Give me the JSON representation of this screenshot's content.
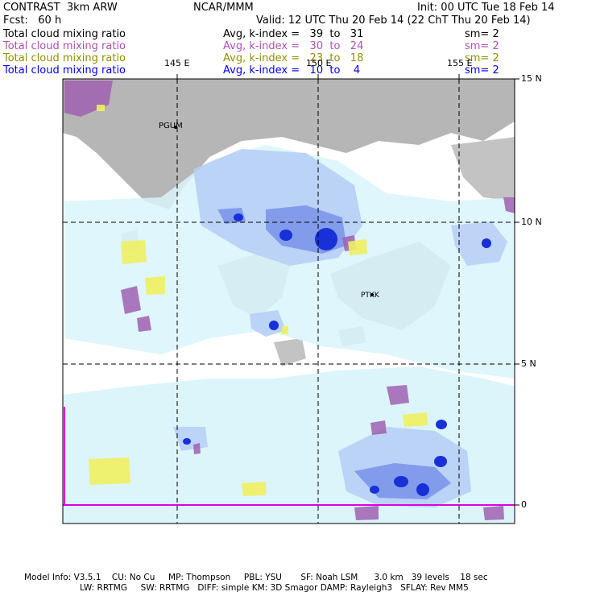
{
  "header": {
    "model": "CONTRAST  3km ARW",
    "center": "NCAR/MMM",
    "init": "Init: 00 UTC Tue 18 Feb 14",
    "fcst": "Fcst:   60 h",
    "valid": "Valid: 12 UTC Thu 20 Feb 14 (22 ChT Thu 20 Feb 14)"
  },
  "fields": [
    {
      "name": "Total cloud mixing ratio",
      "stat": "Avg, k-index =   39  to   31",
      "sm": "sm= 2",
      "color": "#000000"
    },
    {
      "name": "Total cloud mixing ratio",
      "stat": "Avg, k-index =   30  to   24",
      "sm": "sm= 2",
      "color": "#b050b0"
    },
    {
      "name": "Total cloud mixing ratio",
      "stat": "Avg, k-index =   23  to   18",
      "sm": "sm= 2",
      "color": "#909000"
    },
    {
      "name": "Total cloud mixing ratio",
      "stat": "Avg, k-index =   10  to    4",
      "sm": "sm= 2",
      "color": "#0000ff"
    }
  ],
  "axes": {
    "lon_labels": [
      "145 E",
      "150 E",
      "155 E"
    ],
    "lat_labels": [
      "15 N",
      "10 N",
      "5 N",
      "0"
    ]
  },
  "stations": [
    "PGUM",
    "PTKK"
  ],
  "footer": {
    "line1": "Model Info: V3.5.1    CU: No Cu     MP: Thompson     PBL: YSU       SF: Noah LSM      3.0 km   39 levels    18 sec",
    "line2": "LW: RRTMG     SW: RRTMG   DIFF: simple KM: 3D Smagor DAMP: Rayleigh3   SFLAY: Rev MM5"
  },
  "colors": {
    "land_grey": "#a8a8a8",
    "light_cyan": "#d8f4fb",
    "pale_blue": "#b4ccf4",
    "mid_blue": "#7890e8",
    "deep_blue": "#1830d8",
    "purple": "#a060b0",
    "yellow": "#f0f060",
    "magenta": "#e000e0"
  }
}
